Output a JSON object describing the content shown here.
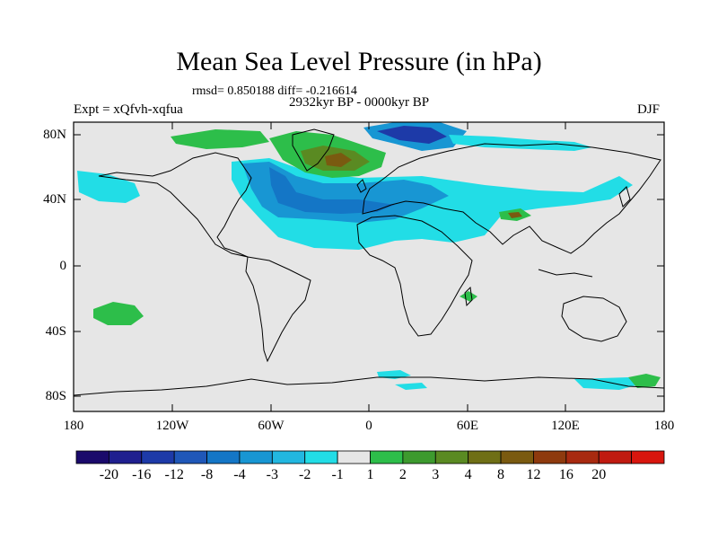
{
  "title": "Mean Sea Level Pressure (in hPa)",
  "stats": "rmsd= 0.850188 diff= -0.216614",
  "period": "2932kyr BP - 0000kyr BP",
  "experiment": "Expt = xQfvh-xqfua",
  "season": "DJF",
  "map": {
    "lat_labels": [
      "80N",
      "40N",
      "0",
      "40S",
      "80S"
    ],
    "lon_labels": [
      "180",
      "120W",
      "60W",
      "0",
      "60E",
      "120E",
      "180"
    ]
  },
  "colorbar": {
    "colors": [
      "#1a0a6b",
      "#1f1f8f",
      "#1d3aa8",
      "#1f57b8",
      "#1476c6",
      "#1896d3",
      "#22b7e0",
      "#22dde6",
      "#e6e6e6",
      "#2dbe4a",
      "#3d9a2e",
      "#5a8a22",
      "#6f6f16",
      "#7a5a10",
      "#8e3a0e",
      "#a82a10",
      "#c01a10",
      "#d8160e"
    ],
    "labels": [
      "-20",
      "-16",
      "-12",
      "-8",
      "-4",
      "-3",
      "-2",
      "-1",
      "1",
      "2",
      "3",
      "4",
      "8",
      "12",
      "16",
      "20"
    ]
  }
}
